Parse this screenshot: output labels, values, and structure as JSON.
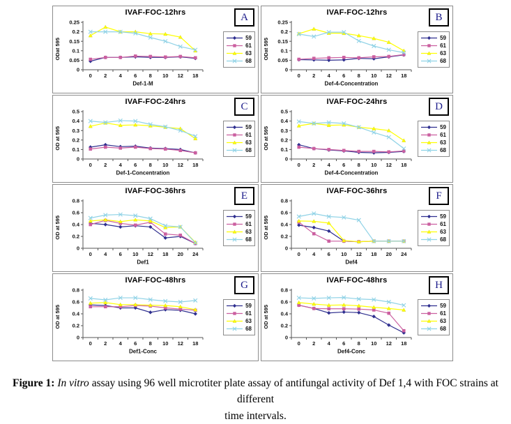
{
  "figure": {
    "caption_prefix": "Figure 1: ",
    "caption_italic": "In vitro",
    "caption_rest": " assay using 96 well microtiter plate assay of antifungal activity of Def 1,4 with FOC strains at different",
    "caption_line2": "time intervals."
  },
  "colors": {
    "s59": "#2f2f8f",
    "s61": "#cb5fa0",
    "s63": "#ffff00",
    "s68": "#8fd2e6",
    "axis": "#555555",
    "border": "#8c8c8c",
    "letter": "#1b1b8a"
  },
  "chart_data": [
    {
      "id": "A",
      "type": "line",
      "title": "IVAF-FOC-12hrs",
      "xlabel": "Def-1-M",
      "ylabel": "ODat 595",
      "categories": [
        "0",
        "2",
        "4",
        "6",
        "8",
        "10",
        "12",
        "18"
      ],
      "ylim": [
        0,
        0.25
      ],
      "yticks": [
        "0",
        "0.05",
        "0.1",
        "0.15",
        "0.2",
        "0.25"
      ],
      "grid": false,
      "legend_position": "right",
      "series": [
        {
          "name": "59",
          "marker": "diamond",
          "color": "#2f2f8f",
          "values": [
            0.045,
            0.065,
            0.065,
            0.068,
            0.065,
            0.065,
            0.068,
            0.06
          ]
        },
        {
          "name": "61",
          "marker": "square",
          "color": "#cb5fa0",
          "values": [
            0.055,
            0.065,
            0.065,
            0.072,
            0.07,
            0.067,
            0.07,
            0.063
          ]
        },
        {
          "name": "63",
          "marker": "triangle",
          "color": "#ffff00",
          "values": [
            0.18,
            0.225,
            0.2,
            0.2,
            0.19,
            0.188,
            0.172,
            0.1
          ]
        },
        {
          "name": "68",
          "marker": "x",
          "color": "#8fd2e6",
          "values": [
            0.2,
            0.2,
            0.2,
            0.192,
            0.17,
            0.15,
            0.122,
            0.105
          ]
        }
      ]
    },
    {
      "id": "B",
      "type": "line",
      "title": "IVAF-FOC-12hrs",
      "xlabel": "Def-4-Concentration",
      "ylabel": "ODat 595",
      "categories": [
        "0",
        "2",
        "4",
        "6",
        "8",
        "10",
        "12",
        "18"
      ],
      "ylim": [
        0,
        0.25
      ],
      "yticks": [
        "0",
        "0.05",
        "0.1",
        "0.15",
        "0.2",
        "0.25"
      ],
      "grid": false,
      "legend_position": "right",
      "series": [
        {
          "name": "59",
          "marker": "diamond",
          "color": "#2f2f8f",
          "values": [
            0.053,
            0.052,
            0.05,
            0.052,
            0.06,
            0.058,
            0.068,
            0.078
          ]
        },
        {
          "name": "61",
          "marker": "square",
          "color": "#cb5fa0",
          "values": [
            0.055,
            0.06,
            0.063,
            0.065,
            0.063,
            0.068,
            0.07,
            0.08
          ]
        },
        {
          "name": "63",
          "marker": "triangle",
          "color": "#ffff00",
          "values": [
            0.19,
            0.215,
            0.193,
            0.192,
            0.18,
            0.165,
            0.145,
            0.1
          ]
        },
        {
          "name": "68",
          "marker": "x",
          "color": "#8fd2e6",
          "values": [
            0.188,
            0.175,
            0.198,
            0.198,
            0.152,
            0.125,
            0.105,
            0.09
          ]
        }
      ]
    },
    {
      "id": "C",
      "type": "line",
      "title": "IVAF-FOC-24hrs",
      "xlabel": "Def-1-Concentration",
      "ylabel": "OD at 595",
      "categories": [
        "0",
        "2",
        "4",
        "6",
        "8",
        "10",
        "12",
        "18"
      ],
      "ylim": [
        0,
        0.5
      ],
      "yticks": [
        "0",
        "0.1",
        "0.2",
        "0.3",
        "0.4",
        "0.5"
      ],
      "grid": false,
      "legend_position": "right",
      "series": [
        {
          "name": "59",
          "marker": "diamond",
          "color": "#2f2f8f",
          "values": [
            0.125,
            0.15,
            0.13,
            0.135,
            0.115,
            0.11,
            0.1,
            0.065
          ]
        },
        {
          "name": "61",
          "marker": "square",
          "color": "#cb5fa0",
          "values": [
            0.105,
            0.125,
            0.115,
            0.125,
            0.11,
            0.105,
            0.09,
            0.065
          ]
        },
        {
          "name": "63",
          "marker": "triangle",
          "color": "#ffff00",
          "values": [
            0.345,
            0.38,
            0.355,
            0.36,
            0.35,
            0.335,
            0.32,
            0.215
          ]
        },
        {
          "name": "68",
          "marker": "x",
          "color": "#8fd2e6",
          "values": [
            0.4,
            0.385,
            0.405,
            0.4,
            0.365,
            0.34,
            0.3,
            0.24
          ]
        }
      ]
    },
    {
      "id": "D",
      "type": "line",
      "title": "IVAF-FOC-24hrs",
      "xlabel": "Def-4-Concentration",
      "ylabel": "OD at 595",
      "categories": [
        "0",
        "2",
        "4",
        "6",
        "8",
        "10",
        "12",
        "18"
      ],
      "ylim": [
        0,
        0.5
      ],
      "yticks": [
        "0",
        "0.1",
        "0.2",
        "0.3",
        "0.4",
        "0.5"
      ],
      "grid": false,
      "legend_position": "right",
      "series": [
        {
          "name": "59",
          "marker": "diamond",
          "color": "#2f2f8f",
          "values": [
            0.15,
            0.11,
            0.095,
            0.085,
            0.07,
            0.065,
            0.07,
            0.08
          ]
        },
        {
          "name": "61",
          "marker": "square",
          "color": "#cb5fa0",
          "values": [
            0.125,
            0.11,
            0.1,
            0.09,
            0.08,
            0.08,
            0.075,
            0.085
          ]
        },
        {
          "name": "63",
          "marker": "triangle",
          "color": "#ffff00",
          "values": [
            0.35,
            0.375,
            0.355,
            0.36,
            0.335,
            0.32,
            0.3,
            0.195
          ]
        },
        {
          "name": "68",
          "marker": "x",
          "color": "#8fd2e6",
          "values": [
            0.395,
            0.375,
            0.385,
            0.375,
            0.335,
            0.28,
            0.23,
            0.11
          ]
        }
      ]
    },
    {
      "id": "E",
      "type": "line",
      "title": "IVAF-FOC-36hrs",
      "xlabel": "Def1",
      "ylabel": "OD at 595",
      "categories": [
        "0",
        "4",
        "6",
        "10",
        "12",
        "18",
        "20",
        "24"
      ],
      "ylim": [
        0,
        0.8
      ],
      "yticks": [
        "0",
        "0.2",
        "0.4",
        "0.6",
        "0.8"
      ],
      "grid": false,
      "legend_position": "right",
      "series": [
        {
          "name": "59",
          "marker": "diamond",
          "color": "#2f2f8f",
          "values": [
            0.42,
            0.4,
            0.36,
            0.38,
            0.36,
            0.175,
            0.2,
            0.08
          ]
        },
        {
          "name": "61",
          "marker": "square",
          "color": "#cb5fa0",
          "values": [
            0.4,
            0.47,
            0.42,
            0.39,
            0.44,
            0.24,
            0.22,
            0.08
          ]
        },
        {
          "name": "63",
          "marker": "triangle",
          "color": "#ffff00",
          "values": [
            0.46,
            0.48,
            0.45,
            0.48,
            0.46,
            0.35,
            0.36,
            0.1
          ]
        },
        {
          "name": "68",
          "marker": "x",
          "color": "#8fd2e6",
          "values": [
            0.51,
            0.56,
            0.57,
            0.55,
            0.5,
            0.38,
            0.36,
            0.09
          ]
        }
      ]
    },
    {
      "id": "F",
      "type": "line",
      "title": "IVAF-FOC-36hrs",
      "xlabel": "Def4",
      "ylabel": "OD at 595",
      "categories": [
        "0",
        "4",
        "6",
        "10",
        "12",
        "18",
        "20",
        "24"
      ],
      "ylim": [
        0,
        0.8
      ],
      "yticks": [
        "0",
        "0.2",
        "0.4",
        "0.6",
        "0.8"
      ],
      "grid": false,
      "legend_position": "right",
      "series": [
        {
          "name": "59",
          "marker": "diamond",
          "color": "#2f2f8f",
          "values": [
            0.39,
            0.35,
            0.29,
            0.12,
            0.11,
            0.12,
            0.12,
            0.12
          ]
        },
        {
          "name": "61",
          "marker": "square",
          "color": "#cb5fa0",
          "values": [
            0.44,
            0.245,
            0.12,
            0.12,
            0.11,
            0.12,
            0.12,
            0.12
          ]
        },
        {
          "name": "63",
          "marker": "triangle",
          "color": "#ffff00",
          "values": [
            0.46,
            0.455,
            0.425,
            0.13,
            0.11,
            0.12,
            0.12,
            0.12
          ]
        },
        {
          "name": "68",
          "marker": "x",
          "color": "#8fd2e6",
          "values": [
            0.535,
            0.585,
            0.535,
            0.52,
            0.475,
            0.12,
            0.12,
            0.12
          ]
        }
      ]
    },
    {
      "id": "G",
      "type": "line",
      "title": "IVAF-FOC-48hrs",
      "xlabel": "Def1-Conc",
      "ylabel": "OD at 595",
      "categories": [
        "0",
        "2",
        "4",
        "6",
        "8",
        "10",
        "12",
        "18"
      ],
      "ylim": [
        0,
        0.8
      ],
      "yticks": [
        "0",
        "0.2",
        "0.4",
        "0.6",
        "0.8"
      ],
      "grid": false,
      "legend_position": "right",
      "series": [
        {
          "name": "59",
          "marker": "diamond",
          "color": "#2f2f8f",
          "values": [
            0.55,
            0.54,
            0.5,
            0.5,
            0.425,
            0.47,
            0.46,
            0.4
          ]
        },
        {
          "name": "61",
          "marker": "square",
          "color": "#cb5fa0",
          "values": [
            0.52,
            0.52,
            0.52,
            0.54,
            0.53,
            0.5,
            0.48,
            0.46
          ]
        },
        {
          "name": "63",
          "marker": "triangle",
          "color": "#ffff00",
          "values": [
            0.58,
            0.59,
            0.555,
            0.555,
            0.545,
            0.54,
            0.52,
            0.47
          ]
        },
        {
          "name": "68",
          "marker": "x",
          "color": "#8fd2e6",
          "values": [
            0.66,
            0.635,
            0.67,
            0.67,
            0.64,
            0.615,
            0.6,
            0.625
          ]
        }
      ]
    },
    {
      "id": "H",
      "type": "line",
      "title": "IVAF-FOC-48hrs",
      "xlabel": "Def4-Conc",
      "ylabel": "OD at 595",
      "categories": [
        "0",
        "2",
        "4",
        "6",
        "8",
        "10",
        "12",
        "18"
      ],
      "ylim": [
        0,
        0.8
      ],
      "yticks": [
        "0",
        "0.2",
        "0.4",
        "0.6",
        "0.8"
      ],
      "grid": false,
      "legend_position": "right",
      "series": [
        {
          "name": "59",
          "marker": "diamond",
          "color": "#2f2f8f",
          "values": [
            0.545,
            0.49,
            0.415,
            0.43,
            0.42,
            0.355,
            0.21,
            0.08
          ]
        },
        {
          "name": "61",
          "marker": "square",
          "color": "#cb5fa0",
          "values": [
            0.545,
            0.49,
            0.485,
            0.485,
            0.48,
            0.465,
            0.41,
            0.115
          ]
        },
        {
          "name": "63",
          "marker": "triangle",
          "color": "#ffff00",
          "values": [
            0.59,
            0.565,
            0.545,
            0.55,
            0.535,
            0.51,
            0.49,
            0.465
          ]
        },
        {
          "name": "68",
          "marker": "x",
          "color": "#8fd2e6",
          "values": [
            0.67,
            0.66,
            0.67,
            0.675,
            0.65,
            0.64,
            0.6,
            0.545
          ]
        }
      ]
    }
  ]
}
